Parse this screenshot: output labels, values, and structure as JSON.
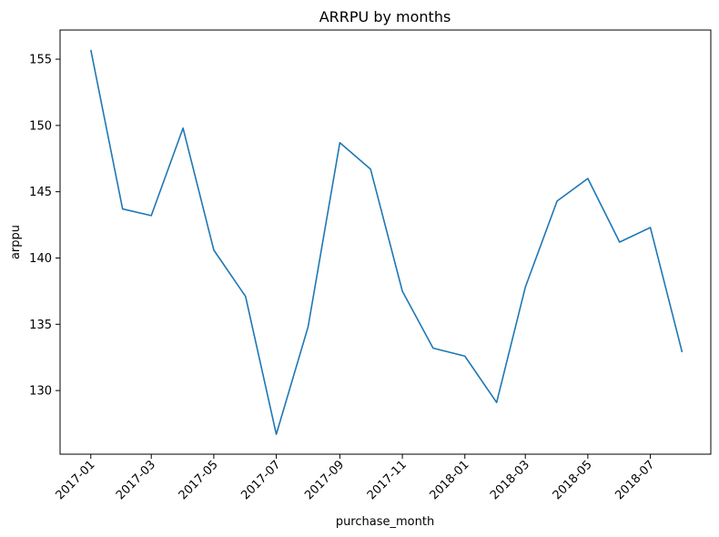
{
  "chart_data": {
    "type": "line",
    "title": "ARRPU by months",
    "xlabel": "purchase_month",
    "ylabel": "arppu",
    "x": [
      "2017-01",
      "2017-02",
      "2017-03",
      "2017-04",
      "2017-05",
      "2017-06",
      "2017-07",
      "2017-08",
      "2017-09",
      "2017-10",
      "2017-11",
      "2017-12",
      "2018-01",
      "2018-02",
      "2018-03",
      "2018-04",
      "2018-05",
      "2018-06",
      "2018-07",
      "2018-08"
    ],
    "series": [
      {
        "values": [
          155.7,
          143.7,
          143.2,
          149.8,
          140.6,
          137.1,
          126.7,
          134.8,
          148.7,
          146.7,
          137.5,
          133.2,
          132.6,
          129.1,
          137.8,
          144.3,
          146.0,
          141.2,
          142.3,
          132.9
        ],
        "color": "#1f77b4"
      }
    ],
    "x_ticks": [
      "2017-01",
      "2017-03",
      "2017-05",
      "2017-07",
      "2017-09",
      "2017-11",
      "2018-01",
      "2018-03",
      "2018-05",
      "2018-07"
    ],
    "y_ticks": [
      130,
      135,
      140,
      145,
      150,
      155
    ],
    "ylim": [
      125.2,
      157.2
    ],
    "xlim": [
      "2016-12-02",
      "2018-08-29"
    ],
    "grid": false,
    "legend": "none"
  }
}
